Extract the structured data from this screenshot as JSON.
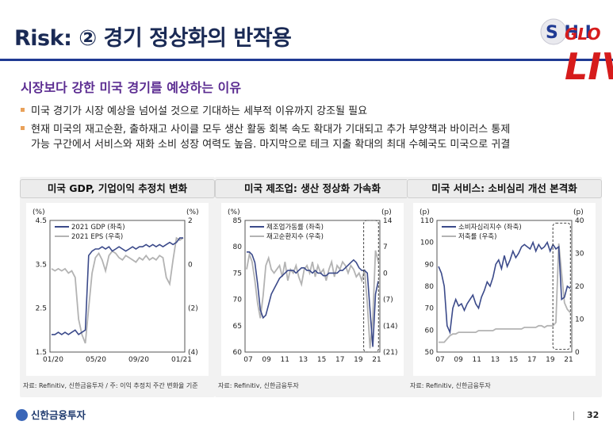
{
  "header": {
    "title": "Risk: ② 경기 정상화의 반작용",
    "logo_text_1": "GLO",
    "logo_text_2": "LIV",
    "logo_letters": "S H I"
  },
  "subtitle": "시장보다 강한 미국 경기를 예상하는 이유",
  "bullets": [
    "미국 경기가 시장 예상을 넘어설 것으로 기대하는 세부적 이유까지 강조될 필요",
    "현재 미국의 재고순환, 출하재고 사이클 모두 생산 활동 회복 속도 확대가 기대되고 추가 부양책과 바이러스 통제",
    "가능 구간에서 서비스와 재화 소비 성장 여력도 높음. 마지막으로 테크 지출 확대의 최대 수혜국도 미국으로 귀결"
  ],
  "colors": {
    "navy": "#1a2a55",
    "purple": "#5b2c91",
    "series_dark": "#3b4a8a",
    "series_light": "#b3b3b3",
    "highlight_box": "#444444"
  },
  "panels": [
    {
      "title": "미국 GDP, 기업이익 추정치 변화",
      "source": "자료: Refinitiv, 신한금융투자 / 주: 이익 추정치 주간 변화율 기준",
      "chart_data": {
        "type": "line",
        "left_unit": "(%)",
        "right_unit": "(%)",
        "left_ticks": [
          "4.5",
          "3.5",
          "2.5",
          "1.5"
        ],
        "right_ticks": [
          "2",
          "0",
          "(2)",
          "(4)"
        ],
        "x_ticks": [
          "01/20",
          "05/20",
          "09/20",
          "01/21"
        ],
        "ylim_left": [
          1.5,
          4.5
        ],
        "ylim_right": [
          -4,
          2
        ],
        "series": [
          {
            "name": "2021 GDP (좌축)",
            "axis": "left",
            "color": "#3b4a8a",
            "values": [
              1.9,
              1.9,
              1.95,
              1.9,
              1.95,
              1.9,
              1.95,
              2.0,
              1.9,
              1.95,
              2.0,
              3.7,
              3.8,
              3.85,
              3.85,
              3.9,
              3.85,
              3.9,
              3.8,
              3.85,
              3.9,
              3.85,
              3.8,
              3.85,
              3.9,
              3.85,
              3.9,
              3.9,
              3.95,
              3.9,
              3.95,
              3.9,
              3.95,
              3.9,
              3.95,
              4.0,
              3.95,
              4.0,
              4.1,
              4.1
            ]
          },
          {
            "name": "2021 EPS (우축)",
            "axis": "right",
            "color": "#b3b3b3",
            "values": [
              -0.2,
              -0.3,
              -0.2,
              -0.3,
              -0.2,
              -0.4,
              -0.3,
              -0.6,
              -2.5,
              -3.2,
              -3.6,
              -2.0,
              -0.4,
              0.3,
              0.5,
              0.2,
              -0.3,
              0.4,
              0.6,
              0.5,
              0.3,
              0.2,
              0.4,
              0.3,
              0.2,
              0.1,
              0.3,
              0.2,
              0.4,
              0.2,
              0.3,
              0.2,
              0.4,
              0.3,
              -0.6,
              -0.9,
              0.2,
              1.2,
              1.1,
              1.2
            ]
          }
        ]
      }
    },
    {
      "title": "미국 제조업: 생산 정상화 가속화",
      "source": "자료: Refinitiv, 신한금융투자",
      "chart_data": {
        "type": "line",
        "left_unit": "(%)",
        "right_unit": "(p)",
        "left_ticks": [
          "85",
          "80",
          "75",
          "70",
          "65",
          "60"
        ],
        "right_ticks": [
          "14",
          "7",
          "0",
          "(7)",
          "(14)",
          "(21)"
        ],
        "x_ticks": [
          "07",
          "09",
          "11",
          "13",
          "15",
          "17",
          "19",
          "21"
        ],
        "ylim_left": [
          60,
          85
        ],
        "ylim_right": [
          -21,
          14
        ],
        "series": [
          {
            "name": "제조업가동률 (좌축)",
            "axis": "left",
            "color": "#3b4a8a",
            "values": [
              79,
              79,
              78.5,
              77,
              73,
              68,
              66.5,
              67,
              69,
              71,
              72,
              73,
              74,
              74.5,
              75,
              75.5,
              75.5,
              75.5,
              75,
              75.5,
              76,
              76,
              75.5,
              75.5,
              75,
              75.5,
              75,
              75,
              74.5,
              74.5,
              75,
              75,
              75,
              75,
              75.5,
              75.5,
              76,
              76.5,
              77,
              77.5,
              77,
              76,
              75.5,
              75.5,
              75,
              68,
              61,
              71,
              73.5
            ]
          },
          {
            "name": "재고순환지수 (우축)",
            "axis": "right",
            "color": "#b3b3b3",
            "values": [
              1,
              5,
              3,
              -2,
              -8,
              -12,
              -6,
              2,
              4,
              1,
              0,
              1,
              2,
              -1,
              3,
              -2,
              1,
              0,
              2,
              -1,
              -3,
              1,
              2,
              0,
              3,
              -1,
              2,
              0,
              1,
              -2,
              1,
              3,
              -1,
              2,
              1,
              3,
              2,
              0,
              2,
              1,
              -1,
              0,
              -2,
              1,
              -8,
              -20,
              -12,
              6,
              3
            ]
          }
        ]
      }
    },
    {
      "title": "미국 서비스: 소비심리 개선 본격화",
      "source": "자료: Refinitiv, 신한금융투자",
      "chart_data": {
        "type": "line",
        "left_unit": "(p)",
        "right_unit": "(p)",
        "left_ticks": [
          "110",
          "100",
          "90",
          "80",
          "70",
          "60",
          "50"
        ],
        "right_ticks": [
          "40",
          "30",
          "20",
          "10",
          "0"
        ],
        "x_ticks": [
          "07",
          "09",
          "11",
          "13",
          "15",
          "17",
          "19",
          "21"
        ],
        "ylim_left": [
          50,
          110
        ],
        "ylim_right": [
          0,
          40
        ],
        "series": [
          {
            "name": "소비자심리지수 (좌축)",
            "axis": "left",
            "color": "#3b4a8a",
            "values": [
              89,
              86,
              80,
              62,
              59,
              70,
              74,
              71,
              72,
              69,
              72,
              74,
              76,
              72,
              70,
              75,
              78,
              82,
              80,
              84,
              90,
              92,
              88,
              94,
              89,
              92,
              96,
              93,
              95,
              98,
              99,
              98,
              97,
              100,
              96,
              99,
              97,
              98,
              100,
              96,
              99,
              97,
              98,
              74,
              75,
              80,
              79
            ]
          },
          {
            "name": "저축률 (우축)",
            "axis": "right",
            "color": "#b3b3b3",
            "values": [
              3,
              3,
              3,
              4,
              5,
              5.5,
              5.5,
              6,
              6,
              6,
              6,
              6,
              6,
              6,
              6.5,
              6.5,
              6.5,
              6.5,
              6.5,
              6.5,
              7,
              7,
              7,
              7,
              7,
              7,
              7,
              7,
              7,
              7,
              7.5,
              7.5,
              7.5,
              7.5,
              7.5,
              8,
              8,
              7.5,
              8,
              8,
              8,
              9,
              33,
              24,
              15,
              13,
              12
            ]
          }
        ]
      }
    }
  ],
  "footer": {
    "company": "신한금융투자",
    "page": "32"
  }
}
